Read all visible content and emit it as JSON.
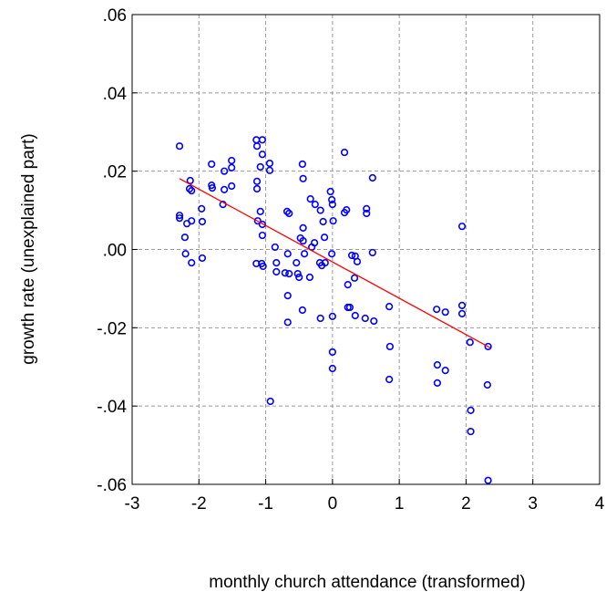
{
  "chart_data": {
    "type": "scatter",
    "xlabel": "monthly church attendance (transformed)",
    "ylabel": "growth rate (unexplained part)",
    "xlim": [
      -3,
      4
    ],
    "xticks": [
      -3,
      -2,
      -1,
      0,
      1,
      2,
      3,
      4
    ],
    "ylim": [
      -0.06,
      0.06
    ],
    "yticks": [
      {
        "value": -0.06,
        "label": "-.06"
      },
      {
        "value": -0.04,
        "label": "-.04"
      },
      {
        "value": -0.02,
        "label": "-.02"
      },
      {
        "value": 0,
        "label": ".00"
      },
      {
        "value": 0.02,
        "label": ".02"
      },
      {
        "value": 0.04,
        "label": ".04"
      },
      {
        "value": 0.06,
        "label": ".06"
      }
    ],
    "grid": true,
    "series": [
      {
        "color": "#0000ff",
        "x": [
          -2.29,
          -2.29,
          -2.29,
          -2.18,
          -2.21,
          -2.2,
          -2.13,
          -2.14,
          -2.11,
          -2.11,
          -2.11,
          -1.96,
          -1.95,
          -1.95,
          -1.81,
          -1.81,
          -1.8,
          -1.62,
          -1.62,
          -1.64,
          -1.51,
          -1.51,
          -1.51,
          -1.14,
          -1.13,
          -1.13,
          -1.13,
          -1.12,
          -1.14,
          -1.05,
          -1.05,
          -1.08,
          -1.08,
          -1.05,
          -1.05,
          -1.06,
          -1.04,
          -0.94,
          -0.94,
          -0.93,
          -0.86,
          -0.84,
          -0.84,
          -0.71,
          -0.68,
          -0.65,
          -0.67,
          -0.65,
          -0.67,
          -0.67,
          -0.48,
          -0.54,
          -0.52,
          -0.5,
          -0.44,
          -0.44,
          -0.45,
          -0.44,
          -0.42,
          -0.45,
          -0.34,
          -0.33,
          -0.26,
          -0.31,
          -0.27,
          -0.18,
          -0.19,
          -0.16,
          -0.18,
          -0.14,
          -0.12,
          -0.11,
          -0.03,
          -0.01,
          0.0,
          0.01,
          -0.01,
          0.0,
          0.0,
          0.0,
          0.18,
          0.18,
          0.21,
          0.23,
          0.23,
          0.26,
          0.29,
          0.33,
          0.34,
          0.34,
          0.37,
          0.51,
          0.51,
          0.49,
          0.6,
          0.6,
          0.62,
          0.85,
          0.86,
          0.85,
          1.56,
          1.57,
          1.57,
          1.69,
          1.69,
          1.94,
          1.94,
          1.94,
          2.06,
          2.07,
          2.07,
          2.33,
          2.32,
          2.33
        ],
        "values": [
          0.0264,
          0.0087,
          0.008,
          0.0066,
          0.0031,
          -0.0011,
          0.0176,
          0.0155,
          0.015,
          0.0073,
          -0.0034,
          0.0104,
          0.0071,
          -0.0022,
          0.0218,
          0.0164,
          0.0157,
          0.02,
          0.0153,
          0.0115,
          0.0227,
          0.0209,
          0.0162,
          0.028,
          0.0264,
          0.0174,
          0.0155,
          0.0073,
          -0.0036,
          0.028,
          0.0243,
          0.0211,
          0.0097,
          0.0064,
          0.0036,
          -0.0036,
          -0.0043,
          0.022,
          0.0202,
          -0.0388,
          0.0006,
          -0.0034,
          -0.0057,
          -0.006,
          0.0097,
          0.0092,
          -0.0011,
          -0.0062,
          -0.0118,
          -0.0186,
          0.0029,
          -0.0034,
          -0.0062,
          -0.0071,
          0.0055,
          0.0022,
          0.0218,
          0.0181,
          -0.0011,
          -0.0155,
          -0.0071,
          0.0129,
          0.0115,
          0.0006,
          0.0017,
          0.01,
          -0.0034,
          -0.0041,
          -0.0176,
          0.0071,
          0.0031,
          -0.0034,
          0.0148,
          0.0127,
          0.0115,
          0.0073,
          -0.0011,
          -0.0171,
          -0.0262,
          -0.0304,
          0.0248,
          0.0094,
          0.0101,
          -0.009,
          -0.0148,
          -0.0148,
          -0.0015,
          -0.0073,
          -0.0169,
          -0.0017,
          -0.0031,
          0.0104,
          0.0092,
          -0.0176,
          0.0183,
          -0.0008,
          -0.0183,
          -0.0146,
          -0.0248,
          -0.0332,
          -0.0153,
          -0.0295,
          -0.0341,
          -0.016,
          -0.0309,
          0.0059,
          -0.0143,
          -0.0164,
          -0.0237,
          -0.0411,
          -0.0465,
          -0.0248,
          -0.0346,
          -0.059
        ]
      },
      {
        "type": "line",
        "color": "#ff0000",
        "x": [
          -2.29,
          2.36
        ],
        "values": [
          0.0181,
          -0.0251
        ]
      }
    ]
  }
}
